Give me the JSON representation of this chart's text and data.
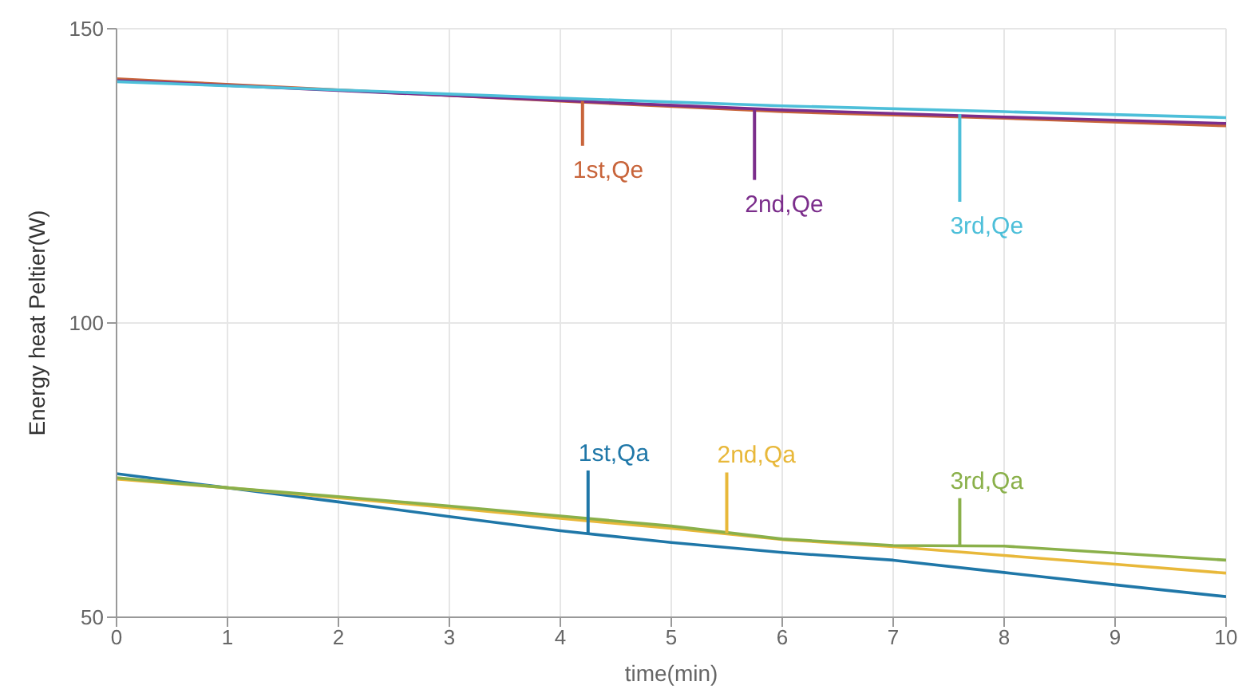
{
  "chart_data": {
    "type": "line",
    "xlabel": "time(min)",
    "ylabel": "Energy heat Peltier(W)",
    "xlim": [
      0,
      10
    ],
    "ylim": [
      50,
      150
    ],
    "xticks": [
      0,
      1,
      2,
      3,
      4,
      5,
      6,
      7,
      8,
      9,
      10
    ],
    "yticks": [
      50,
      100,
      150
    ],
    "grid": true,
    "legend": false,
    "marker": "none",
    "line_style": "solid",
    "series": [
      {
        "color": "#c8643a",
        "x": [
          0,
          2,
          4,
          6,
          8,
          10
        ],
        "values": [
          141.5,
          null,
          137.7,
          135.9,
          134.8,
          133.5
        ]
      },
      {
        "color": "#7b2d8b",
        "x": [
          0,
          2,
          4,
          6,
          8,
          10
        ],
        "values": [
          141.2,
          139.5,
          137.8,
          136.2,
          135,
          133.9
        ]
      },
      {
        "color": "#4dbfd9",
        "x": [
          0,
          2,
          4,
          6,
          8,
          10
        ],
        "values": [
          141,
          139.6,
          138.2,
          136.9,
          135.9,
          134.9
        ]
      },
      {
        "color": "#1f77a8",
        "x": [
          0,
          1,
          2,
          3,
          4,
          5,
          6,
          7,
          8,
          9,
          10
        ],
        "values": [
          74.4,
          72,
          69.6,
          67.1,
          64.7,
          62.7,
          61,
          59.7,
          57.6,
          55.5,
          53.5
        ]
      },
      {
        "color": "#e8b83a",
        "x": [
          0,
          1,
          2,
          3,
          4,
          5,
          6,
          7,
          8,
          9,
          10
        ],
        "values": [
          73.5,
          72,
          70.3,
          68.6,
          66.8,
          65.1,
          63.2,
          62,
          60.5,
          59,
          57.5
        ]
      },
      {
        "color": "#8ab04a",
        "x": [
          0,
          1,
          2,
          3,
          4,
          5,
          6,
          7,
          8,
          9,
          10
        ],
        "values": [
          73.7,
          72,
          70.5,
          68.9,
          67.2,
          65.5,
          63.3,
          62.2,
          62.1,
          60.9,
          59.7
        ]
      }
    ],
    "annotations": [
      {
        "text": "1st,Qe",
        "x": 4.2,
        "y": 137.7
      },
      {
        "text": "2nd,Qe",
        "x": 5.75,
        "y": 136.5
      },
      {
        "text": "3rd,Qe",
        "x": 7.6,
        "y": 135.5
      },
      {
        "text": "1st,Qa",
        "x": 4.25,
        "y": 64.1
      },
      {
        "text": "2nd,Qa",
        "x": 5.5,
        "y": 64.3
      },
      {
        "text": "3rd,Qa",
        "x": 7.6,
        "y": 62.1
      }
    ]
  }
}
